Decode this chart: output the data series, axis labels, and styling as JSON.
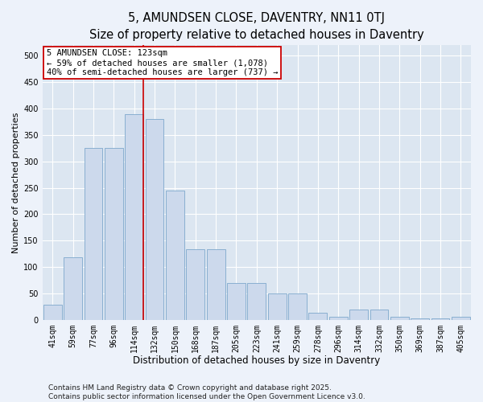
{
  "title": "5, AMUNDSEN CLOSE, DAVENTRY, NN11 0TJ",
  "subtitle": "Size of property relative to detached houses in Daventry",
  "xlabel": "Distribution of detached houses by size in Daventry",
  "ylabel": "Number of detached properties",
  "categories": [
    "41sqm",
    "59sqm",
    "77sqm",
    "96sqm",
    "114sqm",
    "132sqm",
    "150sqm",
    "168sqm",
    "187sqm",
    "205sqm",
    "223sqm",
    "241sqm",
    "259sqm",
    "278sqm",
    "296sqm",
    "314sqm",
    "332sqm",
    "350sqm",
    "369sqm",
    "387sqm",
    "405sqm"
  ],
  "values": [
    28,
    118,
    325,
    325,
    390,
    380,
    245,
    133,
    133,
    70,
    70,
    50,
    50,
    13,
    5,
    20,
    20,
    5,
    2,
    2,
    5
  ],
  "bar_color": "#ccd9ec",
  "bar_edge_color": "#7da7cc",
  "bar_linewidth": 0.6,
  "vline_x_index": 4,
  "vline_color": "#cc0000",
  "annotation_text": "5 AMUNDSEN CLOSE: 123sqm\n← 59% of detached houses are smaller (1,078)\n40% of semi-detached houses are larger (737) →",
  "annotation_box_color": "#ffffff",
  "annotation_box_edge_color": "#cc0000",
  "annotation_fontsize": 7.5,
  "title_fontsize": 10.5,
  "xlabel_fontsize": 8.5,
  "ylabel_fontsize": 8,
  "tick_fontsize": 7,
  "footer_text": "Contains HM Land Registry data © Crown copyright and database right 2025.\nContains public sector information licensed under the Open Government Licence v3.0.",
  "footer_fontsize": 6.5,
  "ylim": [
    0,
    520
  ],
  "yticks": [
    0,
    50,
    100,
    150,
    200,
    250,
    300,
    350,
    400,
    450,
    500
  ],
  "bg_color": "#edf2fa",
  "grid_color": "#ffffff",
  "axes_bg_color": "#dce6f1"
}
